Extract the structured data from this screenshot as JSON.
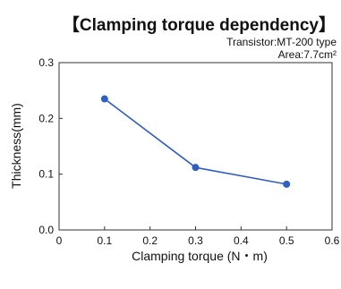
{
  "chart_data": {
    "type": "line",
    "title": "【Clamping torque dependency】",
    "subtitle_lines": [
      "Transistor:MT-200 type",
      "Area:7.7cm²"
    ],
    "xlabel": "Clamping torque (N・m)",
    "ylabel": "Thickness(mm)",
    "xlim": [
      0,
      0.6
    ],
    "ylim": [
      0,
      0.3
    ],
    "xticks": [
      "0",
      "0.1",
      "0.2",
      "0.3",
      "0.4",
      "0.5",
      "0.6"
    ],
    "yticks": [
      "0.0",
      "0.1",
      "0.2",
      "0.3"
    ],
    "grid": false,
    "series": [
      {
        "x": [
          0.1,
          0.3,
          0.5
        ],
        "values": [
          0.235,
          0.112,
          0.082
        ],
        "color": "#2f5fc4"
      }
    ]
  }
}
